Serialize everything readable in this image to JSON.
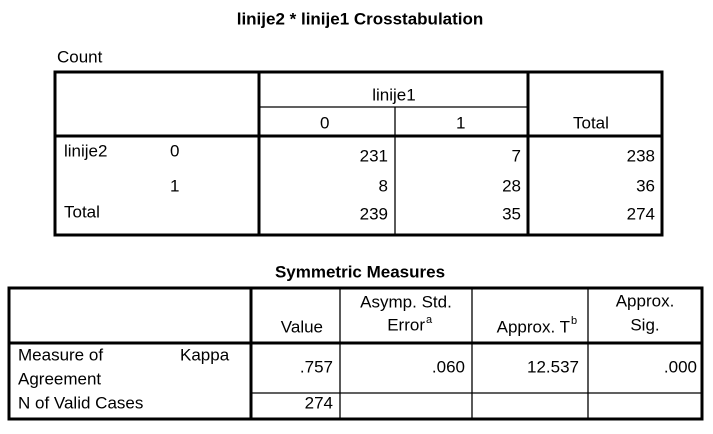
{
  "crosstab": {
    "title": "linije2 * linije1 Crosstabulation",
    "caption": "Count",
    "column_group": "linije1",
    "columns": [
      "0",
      "1",
      "Total"
    ],
    "rows": [
      {
        "label": "linije2",
        "sublabel": "0",
        "cells": [
          "231",
          "7",
          "238"
        ]
      },
      {
        "sublabel": "1",
        "cells": [
          "8",
          "28",
          "36"
        ]
      },
      {
        "label": "Total",
        "cells": [
          "239",
          "35",
          "274"
        ]
      }
    ]
  },
  "symmetric": {
    "title": "Symmetric Measures",
    "headers": [
      {
        "lines": [
          "Value"
        ]
      },
      {
        "lines": [
          "Asymp. Std.",
          "Error"
        ],
        "sup": "a"
      },
      {
        "lines": [
          "Approx. T"
        ],
        "sup": "b"
      },
      {
        "lines": [
          "Approx.",
          "Sig."
        ]
      }
    ],
    "rows": [
      {
        "lines": [
          "Measure of",
          "Agreement"
        ],
        "sublabel": "Kappa",
        "cells": [
          ".757",
          ".060",
          "12.537",
          ".000"
        ]
      },
      {
        "lines": [
          "N of Valid Cases"
        ],
        "cells": [
          "274"
        ]
      }
    ]
  }
}
